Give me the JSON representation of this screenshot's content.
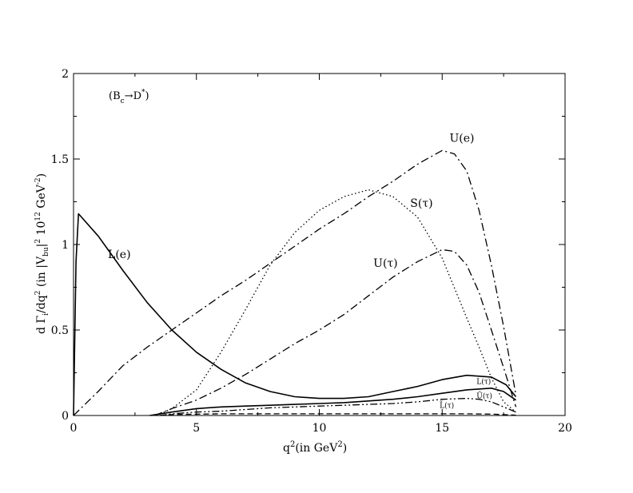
{
  "chart_data": {
    "type": "line",
    "inset_label": {
      "base": "(B",
      "sub": "c",
      "arrow": "→D",
      "sup": "*",
      "close": ")"
    },
    "xlabel": {
      "base": "q",
      "sup": "2",
      "pre": "(in GeV",
      "sup2": "2",
      "post": ")"
    },
    "ylabel": {
      "a": "d Γ",
      "sub1": "i",
      "b": "/dq",
      "sup1": "2",
      "c": " (in |V",
      "sub2": "bu",
      "d": "|",
      "sup2": "2",
      "e": " 10",
      "sup3": "12",
      "f": " GeV",
      "sup4": "-2",
      "g": ")"
    },
    "xlim": [
      0,
      20
    ],
    "ylim": [
      0,
      2
    ],
    "xticks": [
      "0",
      "5",
      "10",
      "15",
      "20"
    ],
    "yticks": [
      "0",
      "0.5",
      "1",
      "1.5",
      "2"
    ],
    "grid": false,
    "series": [
      {
        "name": "L(e)",
        "style": "solid",
        "x": [
          0,
          0.1,
          0.2,
          1,
          2,
          3,
          4,
          5,
          6,
          7,
          8,
          9,
          10,
          11,
          12,
          13,
          14,
          15,
          16,
          17,
          17.6,
          18
        ],
        "y": [
          0.0,
          0.9,
          1.18,
          1.05,
          0.85,
          0.66,
          0.5,
          0.37,
          0.27,
          0.19,
          0.14,
          0.11,
          0.1,
          0.1,
          0.11,
          0.14,
          0.17,
          0.21,
          0.235,
          0.225,
          0.18,
          0.11
        ]
      },
      {
        "name": "U(e)",
        "style": "dashdot",
        "x": [
          0,
          1,
          2,
          3,
          4,
          5,
          6,
          7,
          8,
          9,
          10,
          11,
          12,
          13,
          14,
          15,
          15.5,
          16,
          16.5,
          17,
          17.5,
          18
        ],
        "y": [
          0.0,
          0.14,
          0.29,
          0.4,
          0.5,
          0.6,
          0.7,
          0.79,
          0.89,
          0.99,
          1.09,
          1.18,
          1.28,
          1.37,
          1.47,
          1.55,
          1.53,
          1.43,
          1.2,
          0.88,
          0.52,
          0.12
        ]
      },
      {
        "name": "S(τ)",
        "style": "dotted",
        "x": [
          3.4,
          4,
          5,
          6,
          7,
          8,
          9,
          10,
          11,
          12,
          13,
          14,
          15,
          16,
          16.5,
          17,
          17.5,
          18
        ],
        "y": [
          0.0,
          0.04,
          0.15,
          0.37,
          0.62,
          0.88,
          1.07,
          1.2,
          1.28,
          1.32,
          1.28,
          1.16,
          0.92,
          0.57,
          0.4,
          0.22,
          0.08,
          0.02
        ]
      },
      {
        "name": "U(τ)",
        "style": "dashdot",
        "x": [
          3.3,
          4,
          5,
          6,
          7,
          8,
          9,
          10,
          11,
          12,
          13,
          14,
          15,
          15.5,
          16,
          16.5,
          17,
          17.5,
          18
        ],
        "y": [
          0.0,
          0.04,
          0.09,
          0.16,
          0.24,
          0.33,
          0.42,
          0.5,
          0.59,
          0.7,
          0.81,
          0.9,
          0.97,
          0.96,
          0.88,
          0.72,
          0.5,
          0.28,
          0.05
        ]
      },
      {
        "name": "L(τ)",
        "style": "solid",
        "x": [
          3.1,
          4,
          5,
          6,
          7,
          8,
          9,
          10,
          11,
          12,
          13,
          14,
          15,
          16,
          17,
          17.5,
          18
        ],
        "y": [
          0.0,
          0.02,
          0.04,
          0.05,
          0.055,
          0.06,
          0.065,
          0.07,
          0.075,
          0.085,
          0.095,
          0.11,
          0.13,
          0.15,
          0.16,
          0.14,
          0.09
        ]
      },
      {
        "name": "Ũ(τ)",
        "style": "dashdotdot",
        "x": [
          3.5,
          4,
          5,
          6,
          7,
          8,
          9,
          10,
          11,
          12,
          13,
          14,
          15,
          16,
          16.5,
          17,
          17.5,
          18
        ],
        "y": [
          0.0,
          0.01,
          0.02,
          0.025,
          0.035,
          0.045,
          0.05,
          0.055,
          0.06,
          0.065,
          0.07,
          0.08,
          0.095,
          0.1,
          0.095,
          0.08,
          0.05,
          0.02
        ]
      },
      {
        "name": "L̃(τ)",
        "style": "dashed",
        "x": [
          3.5,
          4,
          5,
          6,
          8,
          10,
          12,
          14,
          15,
          16,
          17,
          17.5,
          18
        ],
        "y": [
          0.0,
          0.005,
          0.008,
          0.01,
          0.01,
          0.01,
          0.01,
          0.01,
          0.01,
          0.01,
          0.008,
          0.005,
          0.002
        ]
      }
    ],
    "annotations": [
      {
        "text": "L(e)",
        "x": 1.4,
        "y": 0.92,
        "size": "large"
      },
      {
        "text": "U(e)",
        "x": 15.3,
        "y": 1.6,
        "size": "large"
      },
      {
        "text": "S(τ)",
        "x": 13.7,
        "y": 1.22,
        "size": "large"
      },
      {
        "text": "U(τ)",
        "x": 12.2,
        "y": 0.87,
        "size": "large"
      },
      {
        "text": "L(τ)",
        "x": 16.4,
        "y": 0.185,
        "size": "small"
      },
      {
        "text": "Ũ(τ)",
        "x": 16.4,
        "y": 0.1,
        "size": "small"
      },
      {
        "text": "L̃(τ)",
        "x": 14.9,
        "y": 0.045,
        "size": "small"
      }
    ]
  }
}
